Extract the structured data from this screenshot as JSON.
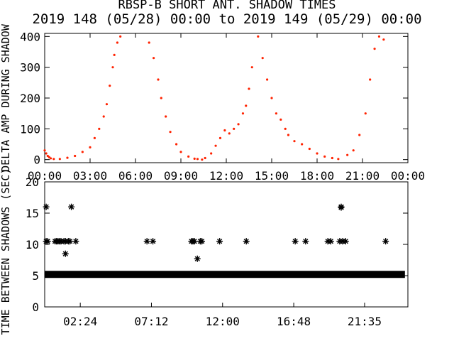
{
  "figure": {
    "title": "RBSP-B SHORT ANT. SHADOW TIMES",
    "subtitle": "2019 148 (05/28) 00:00 to 2019 149 (05/29) 00:00"
  },
  "chart_data": [
    {
      "type": "scatter",
      "ylabel": "DELTA AMP DURING SHADOW",
      "xlabel": "",
      "xlim": [
        0,
        24
      ],
      "ylim": [
        -10,
        410
      ],
      "x_tick_labels": [
        "00:00",
        "03:00",
        "06:00",
        "09:00",
        "12:00",
        "15:00",
        "18:00",
        "21:00",
        "00:00"
      ],
      "x_ticks": [
        0,
        3,
        6,
        9,
        12,
        15,
        18,
        21,
        24
      ],
      "y_tick_labels": [
        "0",
        "100",
        "200",
        "300",
        "400"
      ],
      "y_ticks": [
        0,
        100,
        200,
        300,
        400
      ],
      "marker_color": "#ff2200",
      "grid": false,
      "series": [
        {
          "x": [
            0.0,
            0.1,
            0.2,
            0.3,
            0.4,
            0.6,
            1.0,
            1.5,
            2.0,
            2.5,
            3.0,
            3.3,
            3.6,
            3.9,
            4.1,
            4.3,
            4.5,
            4.6,
            4.8,
            5.0,
            6.9,
            7.2,
            7.5,
            7.7,
            8.0,
            8.3,
            8.7,
            9.0,
            9.5,
            9.9,
            10.1,
            10.4,
            10.6,
            11.0,
            11.3,
            11.6,
            11.9,
            12.2,
            12.5,
            12.8,
            13.1,
            13.3,
            13.5,
            13.7,
            14.1,
            14.4,
            14.7,
            15.0,
            15.3,
            15.6,
            15.9,
            16.1,
            16.5,
            17.0,
            17.5,
            18.0,
            18.5,
            19.0,
            19.4,
            20.0,
            20.4,
            20.8,
            21.2,
            21.5,
            21.8,
            22.1,
            22.4
          ],
          "y": [
            30,
            20,
            12,
            8,
            4,
            2,
            2,
            6,
            12,
            25,
            40,
            70,
            100,
            140,
            180,
            240,
            300,
            340,
            380,
            400,
            380,
            330,
            260,
            200,
            140,
            90,
            50,
            25,
            10,
            3,
            2,
            0,
            5,
            20,
            45,
            70,
            95,
            85,
            100,
            115,
            150,
            175,
            230,
            300,
            400,
            330,
            260,
            200,
            150,
            130,
            100,
            80,
            60,
            50,
            35,
            20,
            10,
            5,
            2,
            15,
            30,
            80,
            150,
            260,
            360,
            400,
            390
          ]
        }
      ]
    },
    {
      "type": "scatter",
      "ylabel": "TIME BETWEEN SHADOWS (SEC)",
      "xlabel": "",
      "xlim": [
        0,
        24.5
      ],
      "ylim": [
        0,
        20
      ],
      "x_tick_labels": [
        "02:24",
        "07:12",
        "12:00",
        "16:48",
        "21:35"
      ],
      "x_ticks": [
        2.4,
        7.2,
        12.0,
        16.8,
        21.58
      ],
      "y_tick_labels": [
        "0",
        "5",
        "10",
        "15",
        "20"
      ],
      "y_ticks": [
        0,
        5,
        10,
        15,
        20
      ],
      "marker": "asterisk",
      "marker_color": "#000000",
      "baseline_value": 5.2,
      "baseline_range": [
        0.0,
        24.3
      ],
      "outliers": {
        "x": [
          0.1,
          0.1,
          0.2,
          0.7,
          0.8,
          0.9,
          1.0,
          1.1,
          1.3,
          1.4,
          1.6,
          1.7,
          1.8,
          2.1,
          1.4,
          6.9,
          7.3,
          9.9,
          10.0,
          10.1,
          10.3,
          10.5,
          10.6,
          11.8,
          13.6,
          16.9,
          17.6,
          19.1,
          19.3,
          19.9,
          20.0,
          20.0,
          20.1,
          20.3,
          23.0
        ],
        "y": [
          16,
          10.5,
          10.5,
          10.5,
          10.5,
          10.5,
          10.5,
          10.5,
          10.5,
          10.5,
          10.5,
          10.5,
          16,
          10.5,
          8.5,
          10.5,
          10.5,
          10.5,
          10.5,
          10.5,
          7.7,
          10.5,
          10.5,
          10.5,
          10.5,
          10.5,
          10.5,
          10.5,
          10.5,
          10.5,
          16,
          15.9,
          10.5,
          10.5,
          10.5
        ]
      }
    }
  ]
}
